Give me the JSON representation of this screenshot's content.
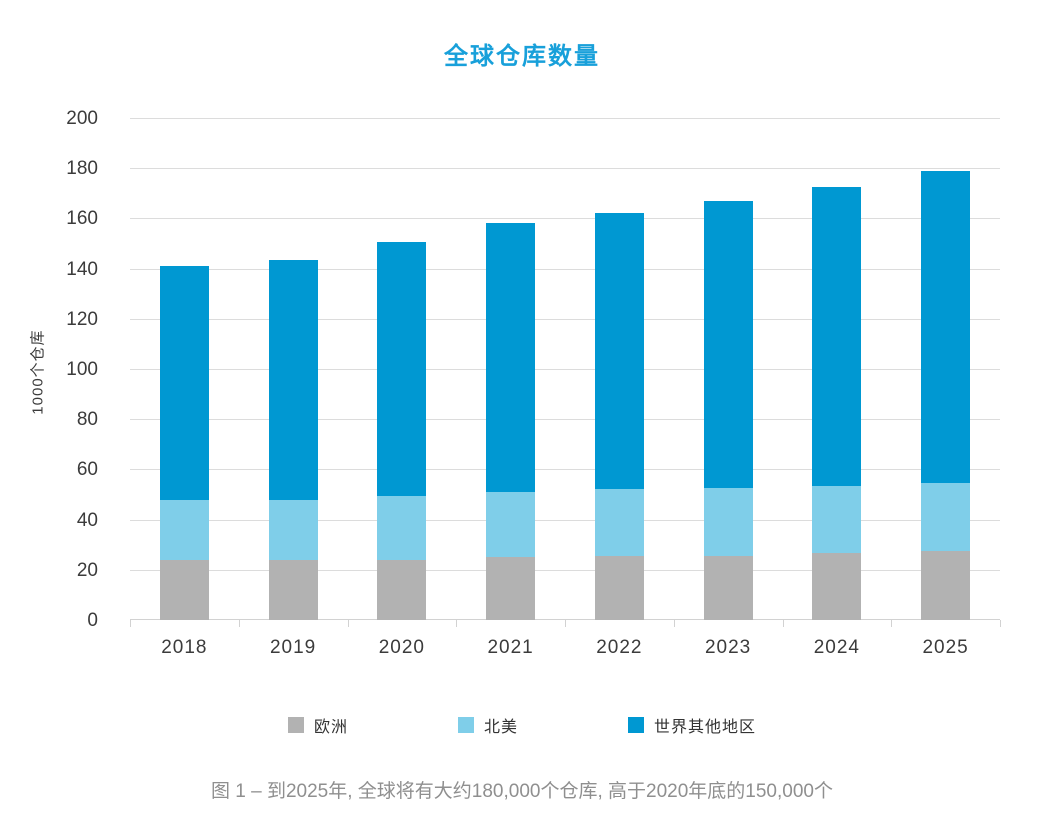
{
  "title": "全球仓库数量",
  "y_axis_title": "1000个仓库",
  "caption": "图 1 – 到2025年, 全球将有大约180,000个仓库, 高于2020年底的150,000个",
  "colors": {
    "title_text": "#18a0da",
    "europe": "#b2b2b2",
    "north_america": "#7fcee9",
    "rest_of_world": "#0098d2",
    "gridline": "#dcdcdc",
    "axis_text": "#3b3b3b",
    "legend_text": "#333333",
    "caption_text": "#8f8f8f"
  },
  "chart_data": {
    "type": "bar",
    "stacked": true,
    "title": "全球仓库数量",
    "xlabel": "",
    "ylabel": "1000个仓库",
    "ylim": [
      0,
      200
    ],
    "ytick_step": 20,
    "grid": true,
    "legend_position": "bottom",
    "categories": [
      "2018",
      "2019",
      "2020",
      "2021",
      "2022",
      "2023",
      "2024",
      "2025"
    ],
    "series": [
      {
        "name": "欧洲",
        "color": "#b2b2b2",
        "values": [
          24,
          24,
          24,
          25,
          25.5,
          25.5,
          26.5,
          27.5
        ]
      },
      {
        "name": "北美",
        "color": "#7fcee9",
        "values": [
          24,
          24,
          25.5,
          26,
          26.5,
          27,
          27,
          27
        ]
      },
      {
        "name": "世界其他地区",
        "color": "#0098d2",
        "values": [
          93,
          95.5,
          101,
          107,
          110,
          114.5,
          119,
          124.5
        ]
      }
    ],
    "totals": [
      141,
      143.5,
      150.5,
      158,
      162,
      167,
      172.5,
      179
    ]
  }
}
